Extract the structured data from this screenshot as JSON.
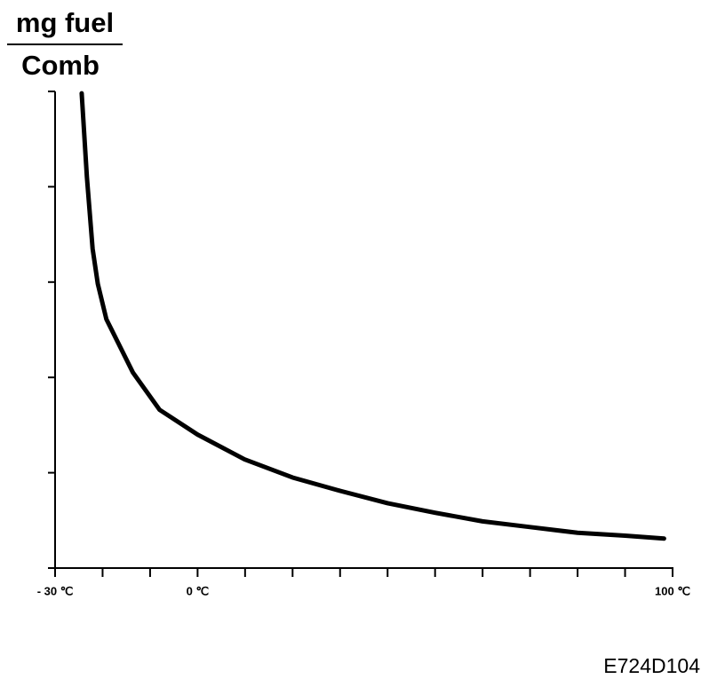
{
  "chart_data": {
    "type": "line",
    "ylabel": {
      "numerator": "mg fuel",
      "denominator": "Comb"
    },
    "x": [
      -24.4,
      -23.3,
      -22.1,
      -21.0,
      -19.2,
      -13.6,
      -8.0,
      0,
      9.9,
      20,
      30,
      40,
      50,
      60,
      70,
      80,
      90,
      98.2
    ],
    "values": [
      4.98,
      4.1,
      3.35,
      2.98,
      2.61,
      2.05,
      1.66,
      1.4,
      1.14,
      0.95,
      0.81,
      0.68,
      0.58,
      0.49,
      0.43,
      0.37,
      0.34,
      0.31
    ],
    "color": "#000000",
    "xlim": [
      -30,
      100
    ],
    "xticks": [
      {
        "value": -30,
        "label": "- 30 ℃"
      },
      {
        "value": 0,
        "label": "0 ℃"
      },
      {
        "value": 100,
        "label": "100 ℃"
      }
    ],
    "x_tick_marks": [
      -20,
      -10,
      10,
      20,
      30,
      40,
      50,
      60,
      70,
      80,
      90
    ],
    "ylim": [
      0,
      5
    ],
    "y_tick_marks": [
      0,
      1,
      2,
      3,
      4,
      5
    ],
    "figure_code": "E724D104"
  }
}
